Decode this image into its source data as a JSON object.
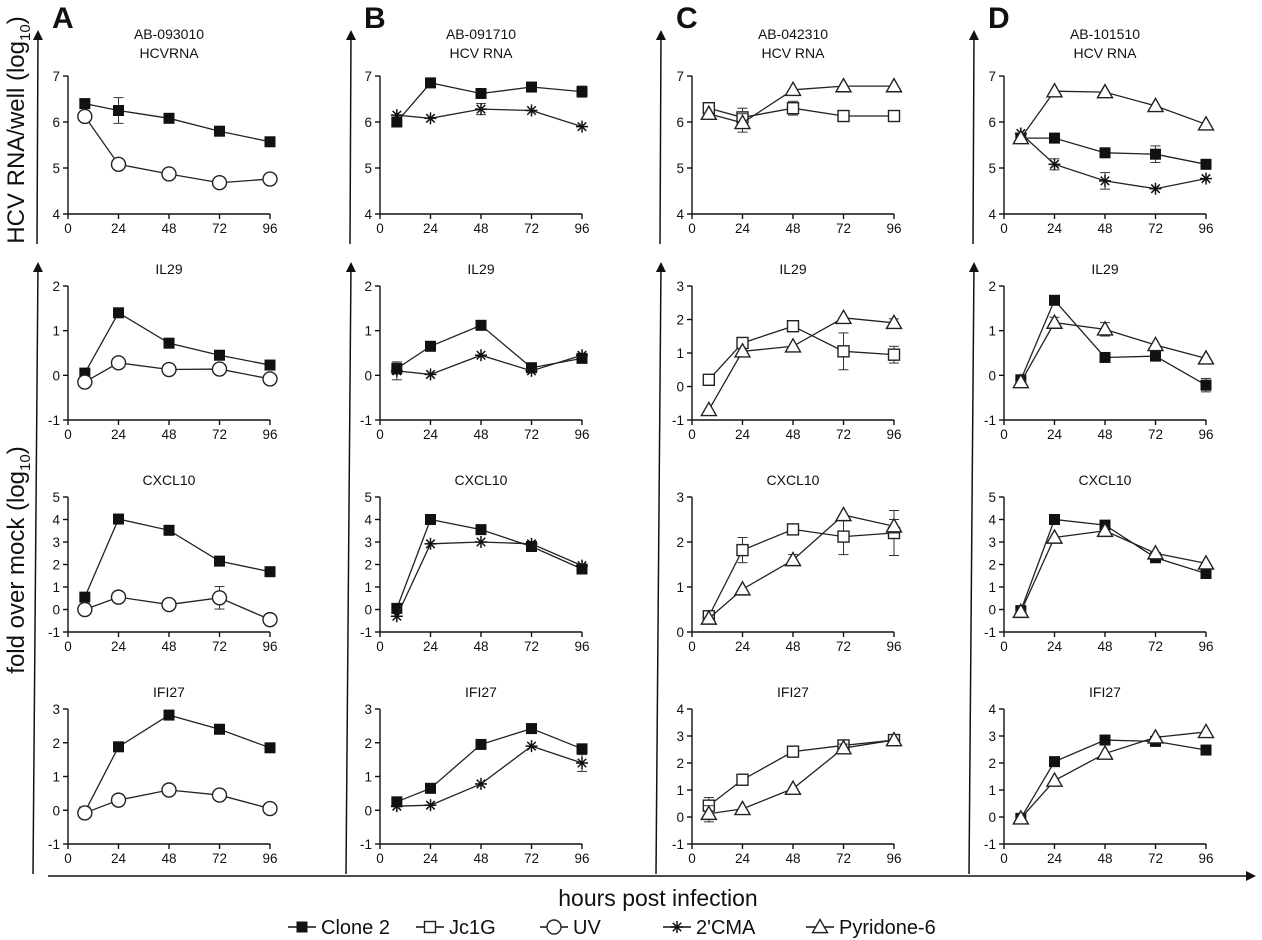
{
  "figure": {
    "y_label_top": "HCV RNA/well (log₁₀)",
    "y_label_top_main": "HCV RNA/well (log",
    "y_label_top_sub": "10",
    "y_label_top_close": ")",
    "y_label_bottom_main": "fold over mock (log",
    "y_label_bottom_sub": "10",
    "y_label_bottom_close": ")",
    "x_label": "hours post infection",
    "legend": [
      {
        "name": "Clone 2",
        "marker": "filled-square"
      },
      {
        "name": "Jc1G",
        "marker": "open-square"
      },
      {
        "name": "UV",
        "marker": "open-circle"
      },
      {
        "name": "2'CMA",
        "marker": "star"
      },
      {
        "name": "Pyridone-6",
        "marker": "open-triangle"
      }
    ]
  },
  "columns": [
    {
      "letter": "A",
      "sample": "AB-093010",
      "rna_title": "HCVRNA"
    },
    {
      "letter": "B",
      "sample": "AB-091710",
      "rna_title": "HCV RNA"
    },
    {
      "letter": "C",
      "sample": "AB-042310",
      "rna_title": "HCV RNA"
    },
    {
      "letter": "D",
      "sample": "AB-101510",
      "rna_title": "HCV RNA"
    }
  ],
  "chart_data": [
    {
      "type": "line",
      "panel": "A",
      "row": 0,
      "title": "AB-093010 HCVRNA",
      "x": [
        8,
        24,
        48,
        72,
        96
      ],
      "xticks": [
        0,
        24,
        48,
        72,
        96
      ],
      "ylim": [
        4,
        7
      ],
      "yticks": [
        4,
        5,
        6,
        7
      ],
      "series": [
        {
          "name": "Clone 2",
          "marker": "filled-square",
          "values": [
            6.4,
            6.25,
            6.08,
            5.8,
            5.57
          ],
          "errors": [
            0.1,
            0.28,
            0,
            0,
            0
          ]
        },
        {
          "name": "UV",
          "marker": "open-circle",
          "values": [
            6.12,
            5.08,
            4.87,
            4.68,
            4.76
          ],
          "errors": [
            0,
            0,
            0.08,
            0.1,
            0
          ]
        }
      ]
    },
    {
      "type": "line",
      "panel": "A",
      "row": 1,
      "title": "IL29",
      "x": [
        8,
        24,
        48,
        72,
        96
      ],
      "xticks": [
        0,
        24,
        48,
        72,
        96
      ],
      "ylim": [
        -1,
        2
      ],
      "yticks": [
        -1,
        0,
        1,
        2
      ],
      "series": [
        {
          "name": "Clone 2",
          "marker": "filled-square",
          "values": [
            0.05,
            1.4,
            0.72,
            0.45,
            0.23
          ],
          "errors": [
            0,
            0,
            0,
            0,
            0
          ]
        },
        {
          "name": "UV",
          "marker": "open-circle",
          "values": [
            -0.15,
            0.28,
            0.13,
            0.14,
            -0.08
          ],
          "errors": [
            0,
            0,
            0,
            0.05,
            0
          ]
        }
      ]
    },
    {
      "type": "line",
      "panel": "A",
      "row": 2,
      "title": "CXCL10",
      "x": [
        8,
        24,
        48,
        72,
        96
      ],
      "xticks": [
        0,
        24,
        48,
        72,
        96
      ],
      "ylim": [
        -1,
        5
      ],
      "yticks": [
        -1,
        0,
        1,
        2,
        3,
        4,
        5
      ],
      "series": [
        {
          "name": "Clone 2",
          "marker": "filled-square",
          "values": [
            0.55,
            4.02,
            3.52,
            2.15,
            1.68
          ],
          "errors": [
            0,
            0,
            0,
            0,
            0
          ]
        },
        {
          "name": "UV",
          "marker": "open-circle",
          "values": [
            0.0,
            0.55,
            0.22,
            0.52,
            -0.45
          ],
          "errors": [
            0,
            0,
            0,
            0.5,
            0
          ]
        }
      ]
    },
    {
      "type": "line",
      "panel": "A",
      "row": 3,
      "title": "IFI27",
      "x": [
        8,
        24,
        48,
        72,
        96
      ],
      "xticks": [
        0,
        24,
        48,
        72,
        96
      ],
      "ylim": [
        -1,
        3
      ],
      "yticks": [
        -1,
        0,
        1,
        2,
        3
      ],
      "series": [
        {
          "name": "Clone 2",
          "marker": "filled-square",
          "values": [
            -0.05,
            1.88,
            2.82,
            2.4,
            1.85
          ],
          "errors": [
            0,
            0,
            0,
            0,
            0
          ]
        },
        {
          "name": "UV",
          "marker": "open-circle",
          "values": [
            -0.08,
            0.3,
            0.6,
            0.45,
            0.05
          ],
          "errors": [
            0,
            0,
            0.15,
            0,
            0
          ]
        }
      ]
    },
    {
      "type": "line",
      "panel": "B",
      "row": 0,
      "title": "AB-091710 HCV RNA",
      "x": [
        8,
        24,
        48,
        72,
        96
      ],
      "xticks": [
        0,
        24,
        48,
        72,
        96
      ],
      "ylim": [
        4,
        7
      ],
      "yticks": [
        4,
        5,
        6,
        7
      ],
      "series": [
        {
          "name": "Clone 2",
          "marker": "filled-square",
          "values": [
            6.0,
            6.85,
            6.62,
            6.76,
            6.66
          ],
          "errors": [
            0,
            0,
            0,
            0,
            0.12
          ]
        },
        {
          "name": "2'CMA",
          "marker": "star",
          "values": [
            6.15,
            6.08,
            6.28,
            6.25,
            5.9
          ],
          "errors": [
            0,
            0,
            0.12,
            0,
            0
          ]
        }
      ]
    },
    {
      "type": "line",
      "panel": "B",
      "row": 1,
      "title": "IL29",
      "x": [
        8,
        24,
        48,
        72,
        96
      ],
      "xticks": [
        0,
        24,
        48,
        72,
        96
      ],
      "ylim": [
        -1,
        2
      ],
      "yticks": [
        -1,
        0,
        1,
        2
      ],
      "series": [
        {
          "name": "Clone 2",
          "marker": "filled-square",
          "values": [
            0.15,
            0.65,
            1.12,
            0.17,
            0.38
          ],
          "errors": [
            0.12,
            0,
            0,
            0,
            0
          ]
        },
        {
          "name": "2'CMA",
          "marker": "star",
          "values": [
            0.1,
            0.02,
            0.45,
            0.1,
            0.45
          ],
          "errors": [
            0.2,
            0,
            0,
            0,
            0
          ]
        }
      ]
    },
    {
      "type": "line",
      "panel": "B",
      "row": 2,
      "title": "CXCL10",
      "x": [
        8,
        24,
        48,
        72,
        96
      ],
      "xticks": [
        0,
        24,
        48,
        72,
        96
      ],
      "ylim": [
        -1,
        5
      ],
      "yticks": [
        -1,
        0,
        1,
        2,
        3,
        4,
        5
      ],
      "series": [
        {
          "name": "Clone 2",
          "marker": "filled-square",
          "values": [
            0.05,
            4.0,
            3.55,
            2.8,
            1.8
          ],
          "errors": [
            0,
            0,
            0,
            0,
            0
          ]
        },
        {
          "name": "2'CMA",
          "marker": "star",
          "values": [
            -0.3,
            2.92,
            3.0,
            2.92,
            1.95
          ],
          "errors": [
            0,
            0,
            0,
            0,
            0
          ]
        }
      ]
    },
    {
      "type": "line",
      "panel": "B",
      "row": 3,
      "title": "IFI27",
      "x": [
        8,
        24,
        48,
        72,
        96
      ],
      "xticks": [
        0,
        24,
        48,
        72,
        96
      ],
      "ylim": [
        -1,
        3
      ],
      "yticks": [
        -1,
        0,
        1,
        2,
        3
      ],
      "series": [
        {
          "name": "Clone 2",
          "marker": "filled-square",
          "values": [
            0.25,
            0.65,
            1.95,
            2.42,
            1.82
          ],
          "errors": [
            0,
            0,
            0.12,
            0,
            0
          ]
        },
        {
          "name": "2'CMA",
          "marker": "star",
          "values": [
            0.12,
            0.15,
            0.78,
            1.9,
            1.4
          ],
          "errors": [
            0,
            0,
            0,
            0,
            0.25
          ]
        }
      ]
    },
    {
      "type": "line",
      "panel": "C",
      "row": 0,
      "title": "AB-042310 HCV RNA",
      "x": [
        8,
        24,
        48,
        72,
        96
      ],
      "xticks": [
        0,
        24,
        48,
        72,
        96
      ],
      "ylim": [
        4,
        7
      ],
      "yticks": [
        4,
        5,
        6,
        7
      ],
      "series": [
        {
          "name": "Jc1G",
          "marker": "open-square",
          "values": [
            6.3,
            6.1,
            6.3,
            6.13,
            6.13
          ],
          "errors": [
            0,
            0.2,
            0.15,
            0.1,
            0.1
          ]
        },
        {
          "name": "Pyridone-6",
          "marker": "open-triangle",
          "values": [
            6.18,
            5.98,
            6.7,
            6.78,
            6.78
          ],
          "errors": [
            0,
            0.2,
            0,
            0,
            0
          ]
        }
      ]
    },
    {
      "type": "line",
      "panel": "C",
      "row": 1,
      "title": "IL29",
      "x": [
        8,
        24,
        48,
        72,
        96
      ],
      "xticks": [
        0,
        24,
        48,
        72,
        96
      ],
      "ylim": [
        -1,
        3
      ],
      "yticks": [
        -1,
        0,
        1,
        2,
        3
      ],
      "series": [
        {
          "name": "Jc1G",
          "marker": "open-square",
          "values": [
            0.2,
            1.3,
            1.8,
            1.05,
            0.95
          ],
          "errors": [
            0,
            0,
            0,
            0.55,
            0.25
          ]
        },
        {
          "name": "Pyridone-6",
          "marker": "open-triangle",
          "values": [
            -0.7,
            1.05,
            1.2,
            2.05,
            1.9
          ],
          "errors": [
            0,
            0,
            0,
            0,
            0.12
          ]
        }
      ]
    },
    {
      "type": "line",
      "panel": "C",
      "row": 2,
      "title": "CXCL10",
      "x": [
        8,
        24,
        48,
        72,
        96
      ],
      "xticks": [
        0,
        24,
        48,
        72,
        96
      ],
      "ylim": [
        0,
        3
      ],
      "yticks": [
        0,
        1,
        2,
        3
      ],
      "series": [
        {
          "name": "Jc1G",
          "marker": "open-square",
          "values": [
            0.35,
            1.82,
            2.28,
            2.12,
            2.2
          ],
          "errors": [
            0,
            0.28,
            0.1,
            0.4,
            0.5
          ]
        },
        {
          "name": "Pyridone-6",
          "marker": "open-triangle",
          "values": [
            0.3,
            0.95,
            1.6,
            2.6,
            2.35
          ],
          "errors": [
            0,
            0,
            0.12,
            0,
            0.15
          ]
        }
      ]
    },
    {
      "type": "line",
      "panel": "C",
      "row": 3,
      "title": "IFI27",
      "x": [
        8,
        24,
        48,
        72,
        96
      ],
      "xticks": [
        0,
        24,
        48,
        72,
        96
      ],
      "ylim": [
        -1,
        4
      ],
      "yticks": [
        -1,
        0,
        1,
        2,
        3,
        4
      ],
      "series": [
        {
          "name": "Jc1G",
          "marker": "open-square",
          "values": [
            0.42,
            1.38,
            2.42,
            2.65,
            2.85
          ],
          "errors": [
            0.3,
            0,
            0,
            0.15,
            0
          ]
        },
        {
          "name": "Pyridone-6",
          "marker": "open-triangle",
          "values": [
            0.12,
            0.3,
            1.05,
            2.55,
            2.85
          ],
          "errors": [
            0.3,
            0,
            0,
            0.15,
            0
          ]
        }
      ]
    },
    {
      "type": "line",
      "panel": "D",
      "row": 0,
      "title": "AB-101510 HCV RNA",
      "x": [
        8,
        24,
        48,
        72,
        96
      ],
      "xticks": [
        0,
        24,
        48,
        72,
        96
      ],
      "ylim": [
        4,
        7
      ],
      "yticks": [
        4,
        5,
        6,
        7
      ],
      "series": [
        {
          "name": "Clone 2",
          "marker": "filled-square",
          "values": [
            5.65,
            5.65,
            5.33,
            5.3,
            5.08
          ],
          "errors": [
            0,
            0.1,
            0.1,
            0.18,
            0
          ]
        },
        {
          "name": "2'CMA",
          "marker": "star",
          "values": [
            5.75,
            5.08,
            4.72,
            4.55,
            4.77
          ],
          "errors": [
            0,
            0.12,
            0.18,
            0,
            0
          ]
        },
        {
          "name": "Pyridone-6",
          "marker": "open-triangle",
          "values": [
            5.65,
            6.67,
            6.65,
            6.35,
            5.95
          ],
          "errors": [
            0,
            0,
            0,
            0,
            0
          ]
        }
      ]
    },
    {
      "type": "line",
      "panel": "D",
      "row": 1,
      "title": "IL29",
      "x": [
        8,
        24,
        48,
        72,
        96
      ],
      "xticks": [
        0,
        24,
        48,
        72,
        96
      ],
      "ylim": [
        -1,
        2
      ],
      "yticks": [
        -1,
        0,
        1,
        2
      ],
      "series": [
        {
          "name": "Clone 2",
          "marker": "filled-square",
          "values": [
            -0.1,
            1.68,
            0.4,
            0.43,
            -0.22
          ],
          "errors": [
            0,
            0,
            0,
            0,
            0.15
          ]
        },
        {
          "name": "Pyridone-6",
          "marker": "open-triangle",
          "values": [
            -0.15,
            1.18,
            1.03,
            0.68,
            0.38
          ],
          "errors": [
            0,
            0.12,
            0.15,
            0,
            0
          ]
        }
      ]
    },
    {
      "type": "line",
      "panel": "D",
      "row": 2,
      "title": "CXCL10",
      "x": [
        8,
        24,
        48,
        72,
        96
      ],
      "xticks": [
        0,
        24,
        48,
        72,
        96
      ],
      "ylim": [
        -1,
        5
      ],
      "yticks": [
        -1,
        0,
        1,
        2,
        3,
        4,
        5
      ],
      "series": [
        {
          "name": "Clone 2",
          "marker": "filled-square",
          "values": [
            -0.05,
            4.0,
            3.75,
            2.3,
            1.6
          ],
          "errors": [
            0,
            0,
            0,
            0,
            0
          ]
        },
        {
          "name": "Pyridone-6",
          "marker": "open-triangle",
          "values": [
            -0.1,
            3.2,
            3.5,
            2.5,
            2.05
          ],
          "errors": [
            0,
            0,
            0,
            0,
            0
          ]
        }
      ]
    },
    {
      "type": "line",
      "panel": "D",
      "row": 3,
      "title": "IFI27",
      "x": [
        8,
        24,
        48,
        72,
        96
      ],
      "xticks": [
        0,
        24,
        48,
        72,
        96
      ],
      "ylim": [
        -1,
        4
      ],
      "yticks": [
        -1,
        0,
        1,
        2,
        3,
        4
      ],
      "series": [
        {
          "name": "Clone 2",
          "marker": "filled-square",
          "values": [
            -0.05,
            2.05,
            2.85,
            2.8,
            2.48
          ],
          "errors": [
            0,
            0,
            0,
            0,
            0
          ]
        },
        {
          "name": "Pyridone-6",
          "marker": "open-triangle",
          "values": [
            -0.05,
            1.35,
            2.35,
            2.95,
            3.15
          ],
          "errors": [
            0,
            0,
            0,
            0,
            0
          ]
        }
      ]
    }
  ]
}
